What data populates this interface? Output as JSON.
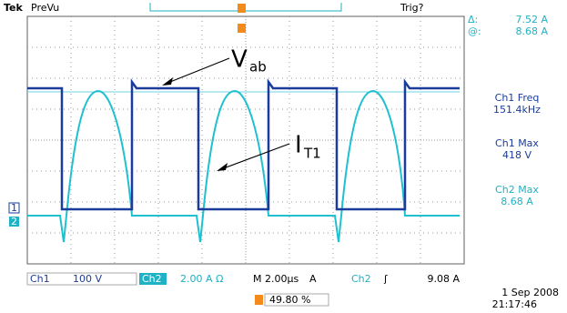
{
  "header": {
    "brand": "Tek",
    "mode": "PreVu",
    "trigger_status": "Trig?"
  },
  "readouts": {
    "delta_label": "Δ:",
    "delta_value": "7.52 A",
    "at_label": "@:",
    "at_value": "8.68 A",
    "measurements": [
      {
        "label": "Ch1 Freq",
        "value": "151.4kHz"
      },
      {
        "label": "Ch1 Max",
        "value": "418 V"
      },
      {
        "label": "Ch2 Max",
        "value": "8.68 A"
      }
    ]
  },
  "annotations": {
    "vab": {
      "main": "V",
      "sub": "ab"
    },
    "it1": {
      "main": "I",
      "sub": "T1"
    }
  },
  "channel_markers": [
    "1",
    "2"
  ],
  "footer": {
    "ch1_label": "Ch1",
    "ch1_scale": "100 V",
    "ch2_label": "Ch2",
    "ch2_scale": "2.00 A Ω",
    "timebase": "M 2.00µs",
    "trigger_mode": "A",
    "trigger_source": "Ch2",
    "trigger_slope": "ʃ",
    "trigger_level": "9.08 A",
    "trigger_position": "49.80 %",
    "date": "1 Sep 2008",
    "time": "21:17:46"
  }
}
